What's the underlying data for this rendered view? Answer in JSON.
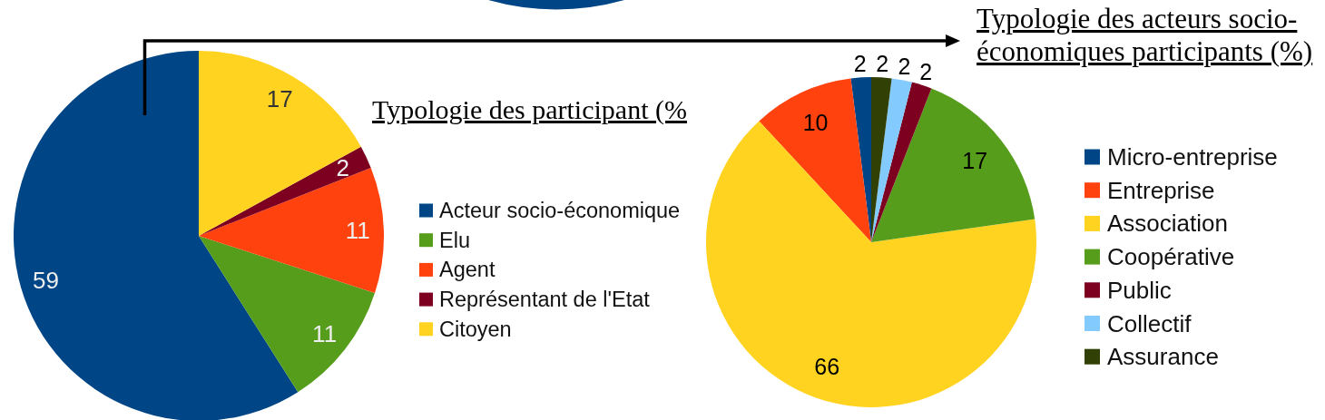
{
  "chart_data": [
    {
      "type": "pie",
      "title": "Typologie des participant (%",
      "categories": [
        "Acteur socio-économique",
        "Elu",
        "Agent",
        "Représentant de l'Etat",
        "Citoyen"
      ],
      "values": [
        59,
        11,
        11,
        2,
        17
      ],
      "colors": [
        "#004586",
        "#579d1c",
        "#ff420e",
        "#7e0021",
        "#ffd320"
      ],
      "data_labels": true,
      "legend": "right"
    },
    {
      "type": "pie",
      "title": "Typologie des acteurs socio-économiques participants (%)",
      "categories": [
        "Micro-entreprise",
        "Entreprise",
        "Association",
        "Coopérative",
        "Public",
        "Collectif",
        "Assurance"
      ],
      "values": [
        2,
        10,
        66,
        17,
        2,
        2,
        2
      ],
      "colors": [
        "#004586",
        "#ff420e",
        "#ffd320",
        "#579d1c",
        "#7e0021",
        "#83caff",
        "#314004"
      ],
      "data_labels": true,
      "legend": "right"
    }
  ]
}
